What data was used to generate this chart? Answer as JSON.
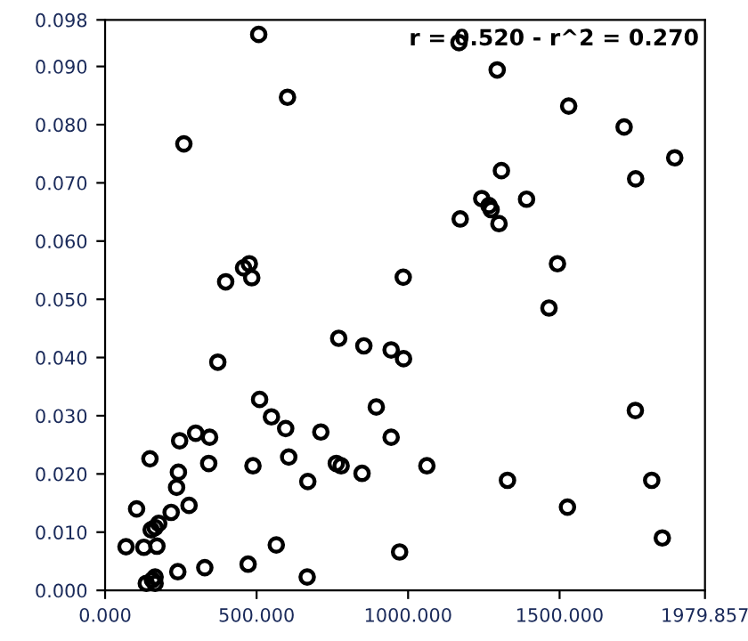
{
  "chart_data": {
    "type": "scatter",
    "marker": "circle",
    "grid": false,
    "legend": false,
    "xlim": [
      0,
      1979.857
    ],
    "ylim": [
      0,
      0.098
    ],
    "xticks": [
      {
        "value": 0,
        "label": "0.000"
      },
      {
        "value": 500,
        "label": "500.000"
      },
      {
        "value": 1000,
        "label": "1000.000"
      },
      {
        "value": 1500,
        "label": "1500.000"
      },
      {
        "value": 1979.857,
        "label": "1979.857"
      }
    ],
    "yticks": [
      {
        "value": 0,
        "label": "0.000"
      },
      {
        "value": 0.01,
        "label": "0.010"
      },
      {
        "value": 0.02,
        "label": "0.020"
      },
      {
        "value": 0.03,
        "label": "0.030"
      },
      {
        "value": 0.04,
        "label": "0.040"
      },
      {
        "value": 0.05,
        "label": "0.050"
      },
      {
        "value": 0.06,
        "label": "0.060"
      },
      {
        "value": 0.07,
        "label": "0.070"
      },
      {
        "value": 0.08,
        "label": "0.080"
      },
      {
        "value": 0.09,
        "label": "0.090"
      },
      {
        "value": 0.098,
        "label": "0.098"
      }
    ],
    "annotations": [
      "r = 0.520 - r^2 = 0.270"
    ],
    "series": [
      {
        "color": "#000000",
        "x": [
          507,
          602,
          260,
          476,
          457,
          484,
          398,
          1168,
          1294,
          1530,
          1713,
          1880,
          1308,
          1751,
          1243,
          1391,
          1267,
          1274,
          1300,
          1172,
          984,
          1493,
          1465,
          771,
          854,
          372,
          510,
          549,
          596,
          712,
          299,
          246,
          345,
          148,
          606,
          342,
          488,
          763,
          779,
          848,
          242,
          669,
          236,
          218,
          277,
          104,
          177,
          165,
          152,
          69,
          128,
          171,
          329,
          240,
          472,
          565,
          667,
          165,
          156,
          136,
          165,
          895,
          944,
          985,
          1750,
          944,
          1062,
          1328,
          1804,
          1526,
          1839,
          972
        ],
        "values": [
          0.0955,
          0.0847,
          0.0767,
          0.0561,
          0.0554,
          0.0537,
          0.053,
          0.0941,
          0.0894,
          0.0832,
          0.0796,
          0.0743,
          0.0721,
          0.0707,
          0.0673,
          0.0672,
          0.0661,
          0.0654,
          0.063,
          0.0638,
          0.0538,
          0.0561,
          0.0485,
          0.0433,
          0.042,
          0.0392,
          0.0328,
          0.0298,
          0.0278,
          0.0272,
          0.027,
          0.0257,
          0.0263,
          0.0226,
          0.0229,
          0.0218,
          0.0214,
          0.0218,
          0.0214,
          0.0201,
          0.0203,
          0.0187,
          0.0177,
          0.0134,
          0.0146,
          0.014,
          0.0115,
          0.0108,
          0.0104,
          0.0075,
          0.0074,
          0.0076,
          0.0039,
          0.0032,
          0.0045,
          0.0078,
          0.0023,
          0.0023,
          0.0018,
          0.0012,
          0.0012,
          0.0315,
          0.0413,
          0.0398,
          0.0309,
          0.0263,
          0.0214,
          0.0189,
          0.0189,
          0.0143,
          0.009,
          0.0066
        ]
      }
    ]
  }
}
